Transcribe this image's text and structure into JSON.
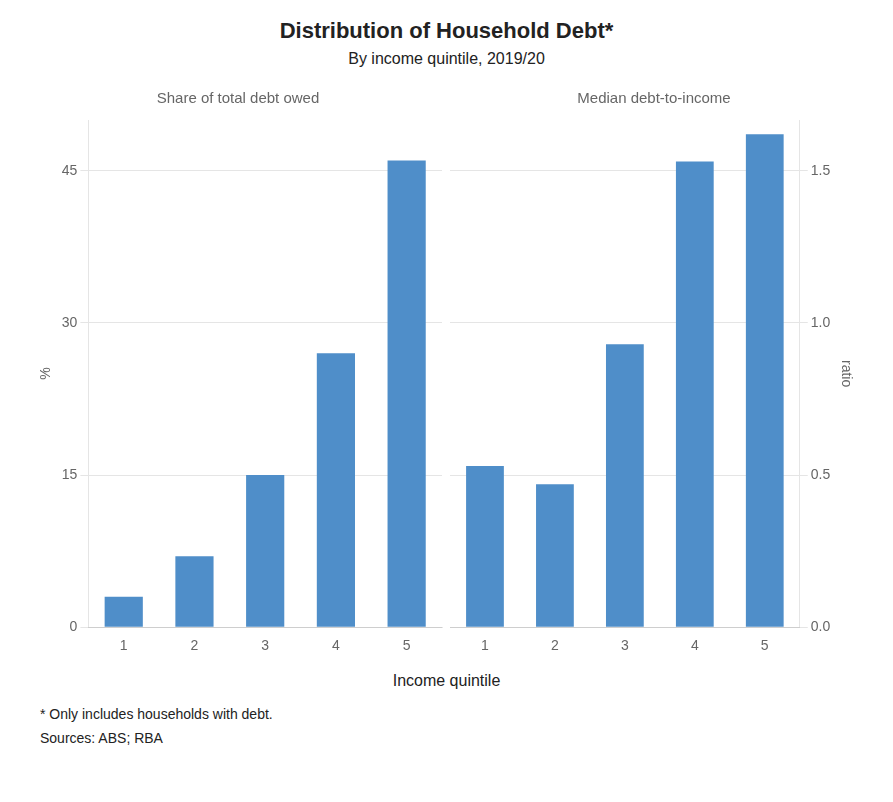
{
  "title": "Distribution of Household Debt*",
  "subtitle": "By income quintile, 2019/20",
  "xlabel": "Income quintile",
  "notes": [
    "* Only includes households with debt.",
    "Sources: ABS; RBA"
  ],
  "chart_data": [
    {
      "type": "bar",
      "title": "Share of total debt owed",
      "categories": [
        "1",
        "2",
        "3",
        "4",
        "5"
      ],
      "values": [
        3.0,
        7.0,
        15.0,
        27.0,
        46.0
      ],
      "color": "#4f8ec9",
      "ylabel": "%",
      "ylim": [
        0,
        50
      ],
      "yticks": [
        0,
        15,
        30,
        45
      ],
      "grid": true
    },
    {
      "type": "bar",
      "title": "Median debt-to-income",
      "categories": [
        "1",
        "2",
        "3",
        "4",
        "5"
      ],
      "values": [
        0.53,
        0.47,
        0.93,
        1.53,
        1.62
      ],
      "color": "#4f8ec9",
      "ylabel": "ratio",
      "ylim": [
        0,
        1.6667
      ],
      "yticks": [
        {
          "value": 0.0,
          "label": "0.0"
        },
        {
          "value": 0.5,
          "label": "0.5"
        },
        {
          "value": 1.0,
          "label": "1.0"
        },
        {
          "value": 1.5,
          "label": "1.5"
        }
      ],
      "grid": true
    }
  ]
}
